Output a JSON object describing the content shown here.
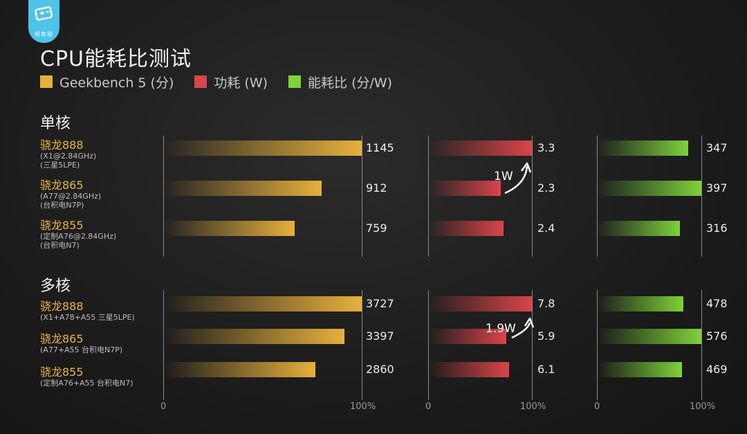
{
  "logo": {
    "text": "帮客圈"
  },
  "title": "CPU能耗比测试",
  "legend": [
    {
      "label": "Geekbench 5 (分)",
      "color": "#e7b03c"
    },
    {
      "label": "功耗 (W)",
      "color": "#d9454a"
    },
    {
      "label": "能耗比 (分/W)",
      "color": "#7ed23a"
    }
  ],
  "sections": [
    {
      "label": "单核"
    },
    {
      "label": "多核"
    }
  ],
  "chart_data": [
    {
      "type": "bar",
      "title": "单核",
      "categories": [
        "骁龙888",
        "骁龙865",
        "骁龙855"
      ],
      "category_details": [
        [
          "(X1@2.84GHz)",
          "(三星5LPE)"
        ],
        [
          "(A77@2.84GHz)",
          "(台积电N7P)"
        ],
        [
          "(定制A76@2.84GHz)",
          "(台积电N7)"
        ]
      ],
      "series": [
        {
          "name": "Geekbench 5 (分)",
          "values": [
            1145,
            912,
            759
          ],
          "labels": [
            "1145",
            "912",
            "759"
          ],
          "axis_ticks": [
            "0",
            "100%"
          ]
        },
        {
          "name": "功耗 (W)",
          "values": [
            3.3,
            2.3,
            2.4
          ],
          "labels": [
            "3.3",
            "2.3",
            "2.4"
          ],
          "axis_ticks": [
            "0",
            "100%"
          ]
        },
        {
          "name": "能耗比 (分/W)",
          "values": [
            347,
            397,
            316
          ],
          "labels": [
            "347",
            "397",
            "316"
          ],
          "axis_ticks": [
            "0",
            "100%"
          ]
        }
      ],
      "annotation": "1W"
    },
    {
      "type": "bar",
      "title": "多核",
      "categories": [
        "骁龙888",
        "骁龙865",
        "骁龙855"
      ],
      "category_details": [
        [
          "(X1+A78+A55 三星5LPE)"
        ],
        [
          "(A77+A55 台积电N7P)"
        ],
        [
          "(定制A76+A55 台积电N7)"
        ]
      ],
      "series": [
        {
          "name": "Geekbench 5 (分)",
          "values": [
            3727,
            3397,
            2860
          ],
          "labels": [
            "3727",
            "3397",
            "2860"
          ],
          "axis_ticks": [
            "0",
            "100%"
          ]
        },
        {
          "name": "功耗 (W)",
          "values": [
            7.8,
            5.9,
            6.1
          ],
          "labels": [
            "7.8",
            "5.9",
            "6.1"
          ],
          "axis_ticks": [
            "0",
            "100%"
          ]
        },
        {
          "name": "能耗比 (分/W)",
          "values": [
            478,
            576,
            469
          ],
          "labels": [
            "478",
            "576",
            "469"
          ],
          "axis_ticks": [
            "0",
            "100%"
          ]
        }
      ],
      "annotation": "1.9W"
    }
  ]
}
